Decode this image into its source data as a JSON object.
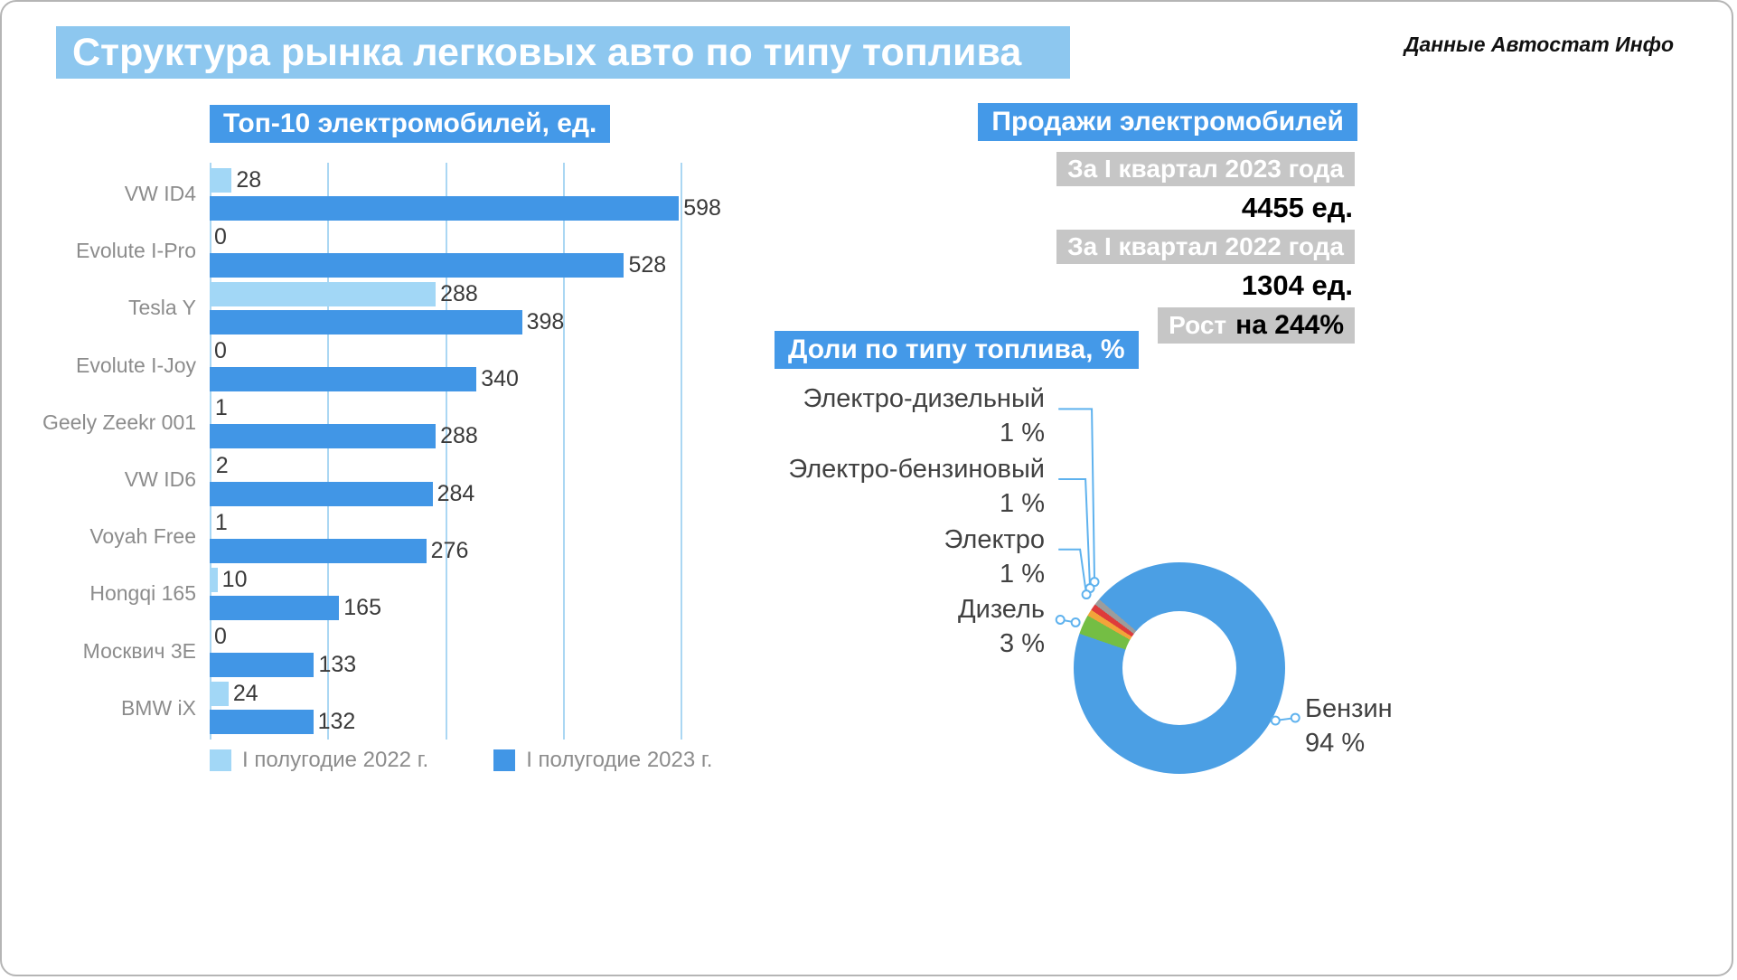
{
  "header": {
    "title": "Структура рынка легковых авто по типу топлива",
    "source": "Данные Автостат Инфо"
  },
  "colors": {
    "accent": "#4499E8",
    "title_bg": "#8DC7EF",
    "chip_bg": "#C6C6C6",
    "grid": "#ABD7F3",
    "leader": "#5FB2EE",
    "text_gray": "#8C8C8C",
    "text_dark": "#3A3A3A"
  },
  "sales_panel": {
    "title": "Продажи электромобилей",
    "rows": [
      {
        "label": "За I квартал 2023 года",
        "value": "4455 ед."
      },
      {
        "label": "За I квартал 2022 года",
        "value": "1304 ед."
      }
    ],
    "growth": {
      "label": "Рост",
      "value": "на 244%"
    }
  },
  "chart_data": [
    {
      "type": "bar",
      "orientation": "horizontal",
      "title": "Топ-10 электромобилей, ед.",
      "categories": [
        "VW ID4",
        "Evolute I-Pro",
        "Tesla Y",
        "Evolute I-Joy",
        "Geely Zeekr 001",
        "VW ID6",
        "Voyah Free",
        "Hongqi 165",
        "Москвич 3Е",
        "BMW iX"
      ],
      "series": [
        {
          "name": "I полугодие 2022 г.",
          "color": "#A2D7F6",
          "values": [
            28,
            0,
            288,
            0,
            1,
            2,
            1,
            10,
            0,
            24
          ]
        },
        {
          "name": "I полугодие 2023 г.",
          "color": "#4196E6",
          "values": [
            598,
            528,
            398,
            340,
            288,
            284,
            276,
            165,
            133,
            132
          ]
        }
      ],
      "xlim": [
        0,
        600
      ],
      "gridlines": [
        0,
        150,
        300,
        450,
        600
      ],
      "grid": true,
      "legend_position": "bottom"
    },
    {
      "type": "pie",
      "donut": true,
      "title": "Доли по типу топлива, %",
      "start_angle_deg": 289,
      "segments": [
        {
          "label": "Дизель",
          "value": 3,
          "value_label": "3 %",
          "color": "#74BE44"
        },
        {
          "label": "Электро",
          "value": 1,
          "value_label": "1 %",
          "color": "#F2A43A"
        },
        {
          "label": "Электро-бензиновый",
          "value": 1,
          "value_label": "1 %",
          "color": "#DE3B3B"
        },
        {
          "label": "Электро-дизельный",
          "value": 1,
          "value_label": "1 %",
          "color": "#9C9C9C"
        },
        {
          "label": "Бензин",
          "value": 94,
          "value_label": "94 %",
          "color": "#4B9FE4"
        }
      ]
    }
  ]
}
